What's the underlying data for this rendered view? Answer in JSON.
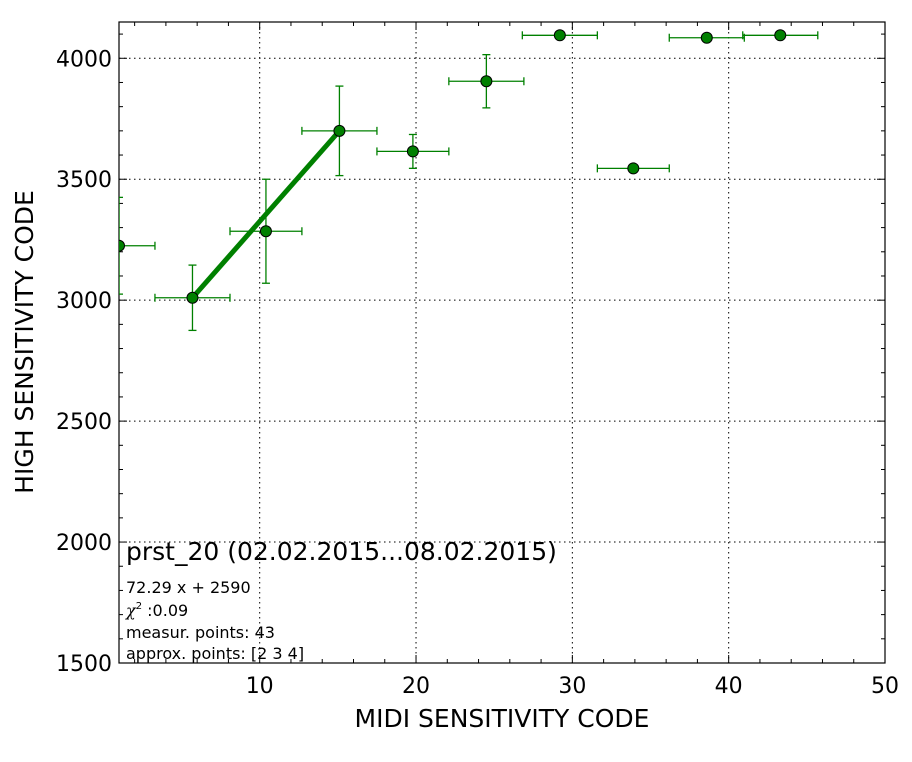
{
  "chart_data": {
    "type": "scatter",
    "title": "",
    "xlabel": "MIDI SENSITIVITY CODE",
    "ylabel": "HIGH SENSITIVITY CODE",
    "xlim": [
      1,
      50
    ],
    "ylim": [
      1500,
      4150
    ],
    "xticks": [
      10,
      20,
      30,
      40,
      50
    ],
    "yticks": [
      1500,
      2000,
      2500,
      3000,
      3500,
      4000
    ],
    "grid": true,
    "marker_color": "#008000",
    "fit_color": "#008000",
    "points": [
      {
        "x": 1.0,
        "y": 3225,
        "xerr": 2.3,
        "yerr": 200
      },
      {
        "x": 5.7,
        "y": 3010,
        "xerr": 2.4,
        "yerr": 135
      },
      {
        "x": 10.4,
        "y": 3285,
        "xerr": 2.3,
        "yerr": 215
      },
      {
        "x": 15.1,
        "y": 3700,
        "xerr": 2.4,
        "yerr": 185
      },
      {
        "x": 19.8,
        "y": 3615,
        "xerr": 2.3,
        "yerr": 70
      },
      {
        "x": 24.5,
        "y": 3905,
        "xerr": 2.4,
        "yerr": 110
      },
      {
        "x": 29.2,
        "y": 4095,
        "xerr": 2.4,
        "yerr": 0
      },
      {
        "x": 33.9,
        "y": 3545,
        "xerr": 2.3,
        "yerr": 0
      },
      {
        "x": 38.6,
        "y": 4085,
        "xerr": 2.4,
        "yerr": 0
      },
      {
        "x": 43.3,
        "y": 4095,
        "xerr": 2.4,
        "yerr": 0
      }
    ],
    "fit": {
      "x": [
        5.7,
        15.1
      ],
      "y": [
        3010,
        3700
      ]
    },
    "annotations": {
      "name": "prst_20 (02.02.2015...08.02.2015)",
      "equation": "72.29 x + 2590",
      "chi_symbol": "χ",
      "chi_exp": "2",
      "chi_value": " :0.09",
      "measur": "measur. points: 43",
      "approx": "approx. points: [2 3 4]"
    }
  }
}
